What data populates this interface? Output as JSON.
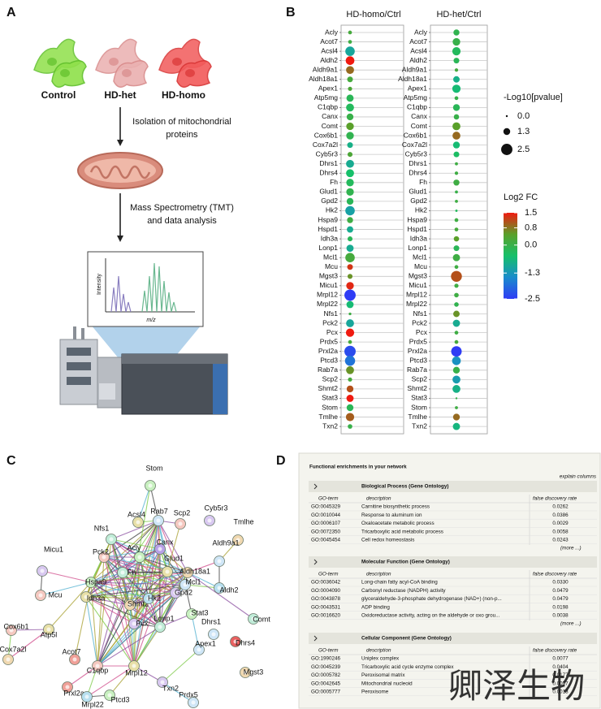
{
  "panel_a": {
    "label": "A",
    "groups": [
      "Control",
      "HD-het",
      "HD-homo"
    ],
    "steps": [
      [
        "Isolation of mitochondrial",
        "proteins"
      ],
      [
        "Mass Spectrometry (TMT)",
        "and data analysis"
      ]
    ],
    "spectrum": {
      "y_label": "Intensity",
      "x_label": "m/z"
    }
  },
  "chart_data": {
    "type": "dot",
    "label": "B",
    "categories": [
      "Acly",
      "Acot7",
      "Acsl4",
      "Aldh2",
      "Aldh9a1",
      "Aldh18a1",
      "Apex1",
      "Atp5mg",
      "C1qbp",
      "Canx",
      "Comt",
      "Cox6b1",
      "Cox7a2l",
      "Cyb5r3",
      "Dhrs1",
      "Dhrs4",
      "Fh",
      "Glud1",
      "Gpd2",
      "Hk2",
      "Hspa9",
      "Hspd1",
      "Idh3a",
      "Lonp1",
      "Mcl1",
      "Mcu",
      "Mgst3",
      "Micu1",
      "Mrpl12",
      "Mrpl22",
      "Nfs1",
      "Pck2",
      "Pcx",
      "Prdx5",
      "Prxl2a",
      "Ptcd3",
      "Rab7a",
      "Scp2",
      "Shmt2",
      "Stat3",
      "Stom",
      "Tmlhe",
      "Txn2"
    ],
    "series": [
      {
        "name": "HD-homo/Ctrl",
        "values": [
          0.2,
          0.1,
          -1.0,
          1.5,
          0.9,
          0.2,
          0.3,
          -0.2,
          -0.3,
          0.0,
          0.5,
          -0.1,
          -0.8,
          0.3,
          -0.9,
          -0.5,
          -0.3,
          -0.1,
          -0.2,
          -1.1,
          0.1,
          -0.9,
          -0.2,
          -0.9,
          0.2,
          1.3,
          0.6,
          1.4,
          -2.5,
          -0.6,
          0.1,
          -1.0,
          1.5,
          0.2,
          -2.3,
          -1.8,
          0.6,
          0.2,
          1.1,
          1.5,
          -0.2,
          1.0,
          0.0
        ],
        "sizes": [
          0.5,
          0.5,
          2.0,
          1.8,
          1.6,
          1.0,
          0.6,
          1.4,
          1.6,
          1.3,
          1.5,
          1.5,
          1.0,
          0.8,
          1.6,
          1.6,
          1.5,
          1.5,
          1.3,
          2.0,
          1.1,
          1.2,
          0.8,
          1.4,
          2.0,
          1.0,
          0.8,
          1.5,
          2.5,
          1.4,
          0.2,
          1.6,
          1.7,
          0.5,
          2.5,
          2.2,
          1.6,
          0.6,
          1.3,
          1.4,
          1.3,
          1.7,
          0.7
        ]
      },
      {
        "name": "HD-het/Ctrl",
        "values": [
          -0.1,
          0.0,
          -0.3,
          -0.2,
          0.2,
          -0.8,
          -0.6,
          0.0,
          -0.2,
          0.0,
          0.5,
          0.9,
          -0.6,
          -0.4,
          0.1,
          0.1,
          0.1,
          0.0,
          0.1,
          -0.3,
          0.1,
          0.2,
          0.5,
          -0.2,
          0.1,
          0.1,
          1.1,
          0.1,
          0.1,
          -0.1,
          0.6,
          -0.9,
          0.1,
          0.2,
          -2.5,
          -1.4,
          0.0,
          -1.2,
          -0.8,
          0.0,
          0.1,
          0.9,
          -0.7
        ],
        "sizes": [
          1.1,
          1.5,
          1.7,
          1.0,
          0.4,
          1.2,
          1.7,
          0.5,
          1.3,
          0.9,
          1.6,
          1.6,
          1.3,
          1.0,
          0.3,
          0.4,
          1.1,
          0.3,
          0.3,
          0.1,
          0.5,
          0.5,
          0.9,
          1.0,
          1.4,
          0.5,
          2.4,
          0.6,
          0.7,
          0.7,
          1.2,
          1.4,
          0.5,
          0.5,
          2.3,
          1.8,
          1.3,
          1.6,
          1.6,
          0.0,
          0.3,
          1.3,
          1.4
        ]
      }
    ],
    "size_legend": {
      "title": "-Log10[pvalue]",
      "values": [
        {
          "value": 0,
          "label": "0.0"
        },
        1.3,
        2.5
      ]
    },
    "colorbar": {
      "title": "Log2 FC",
      "clim": [
        -2.5,
        1.5
      ],
      "ticks": [
        1.5,
        0.8,
        {
          "value": 0,
          "label": "0.0"
        },
        -1.3,
        -2.5
      ],
      "colors": [
        "#2f3cf5",
        "#1a8ccc",
        "#16c06a",
        "#5aa02a",
        "#f01a10"
      ]
    },
    "grid": true
  },
  "panel_c": {
    "label": "C",
    "nodes": [
      "Stom",
      "Rab7",
      "Scp2",
      "Acsl4",
      "Cyb5r3",
      "Nfs1",
      "Tmlhe",
      "Canx",
      "Acly",
      "Aldh9a1",
      "Pck2",
      "Glud1",
      "Micu1",
      "Fh",
      "Aldh18a1",
      "Aldh2",
      "Hspa9",
      "Mcl1",
      "Mcu",
      "Idh3a",
      "Gpd2",
      "Comt",
      "Shmt2",
      "Hk2",
      "Stat3",
      "Dhrs1",
      "Cox6b1",
      "Atp5l",
      "Pcx",
      "Lonp1",
      "Cox7a2l",
      "Acot7",
      "Dhrs4",
      "Apex1",
      "C1qbp",
      "Mrpl12",
      "Txn2",
      "Prxl2a",
      "Mgst3",
      "Mrpl22",
      "Ptcd3",
      "Prdx5"
    ]
  },
  "panel_d": {
    "label": "D",
    "title": "Functional enrichments in your network",
    "explain": "explain columns",
    "more": "(more ...)",
    "columns": [
      "GO-term",
      "description",
      "false discovery rate"
    ],
    "sections": [
      {
        "name": "Biological Process (Gene Ontology)",
        "rows": [
          [
            "GO:0045329",
            "Carnitine biosynthetic process",
            "0.0262"
          ],
          [
            "GO:0010044",
            "Response to aluminum ion",
            "0.0386"
          ],
          [
            "GO:0006107",
            "Oxaloacetate metabolic process",
            "0.0029"
          ],
          [
            "GO:0072350",
            "Tricarboxylic acid metabolic process",
            "0.0058"
          ],
          [
            "GO:0045454",
            "Cell redox homeostasis",
            "0.0243"
          ]
        ]
      },
      {
        "name": "Molecular Function (Gene Ontology)",
        "rows": [
          [
            "GO:0036042",
            "Long-chain fatty acyl-CoA binding",
            "0.0330"
          ],
          [
            "GO:0004090",
            "Carbonyl reductase (NADPH) activity",
            "0.0479"
          ],
          [
            "GO:0043878",
            "glyceraldehyde-3-phosphate dehydrogenase (NAD+) (non-p...",
            "0.0479"
          ],
          [
            "GO:0043531",
            "ADP binding",
            "0.0198"
          ],
          [
            "GO:0016620",
            "Oxidoreductase activity, acting on the aldehyde or oxo grou...",
            "0.0038"
          ]
        ]
      },
      {
        "name": "Cellular Component (Gene Ontology)",
        "rows": [
          [
            "GO:1990246",
            "Uniplex complex",
            "0.0077"
          ],
          [
            "GO:0045239",
            "Tricarboxylic acid cycle enzyme complex",
            "0.0404"
          ],
          [
            "GO:0005782",
            "Peroxisomal matrix",
            "0.0177"
          ],
          [
            "GO:0042645",
            "Mitochondrial nucleoid",
            "0.0097"
          ],
          [
            "GO:0005777",
            "Peroxisome",
            "0.0013"
          ]
        ]
      }
    ],
    "watermark": "卿泽生物"
  }
}
